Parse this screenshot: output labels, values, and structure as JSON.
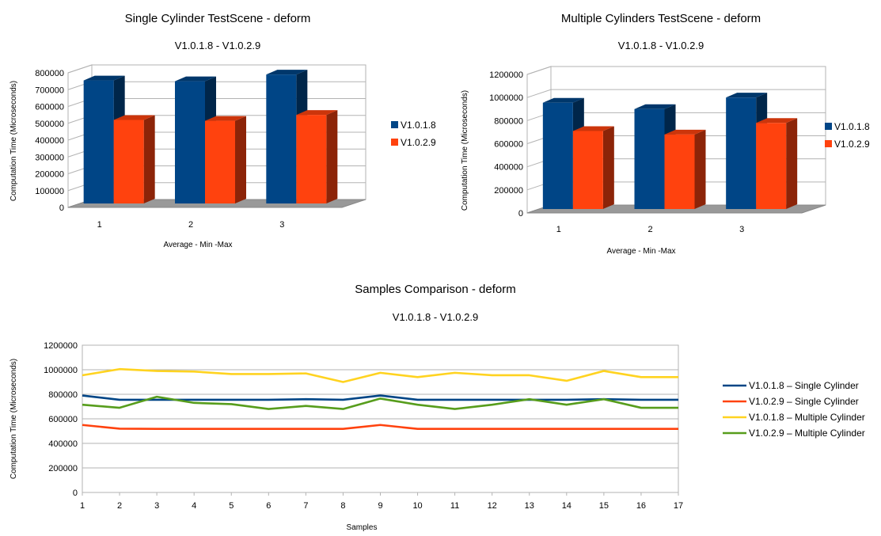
{
  "charts": [
    {
      "id": "single",
      "title": "Single Cylinder TestScene - deform",
      "subtitle": "V1.0.1.8 - V1.0.2.9",
      "xlabel": "Average - Min -Max",
      "ylabel": "Computation Time (Microseconds)",
      "y_ticks": [
        "0",
        "100000",
        "200000",
        "300000",
        "400000",
        "500000",
        "600000",
        "700000",
        "800000"
      ],
      "categories": [
        "1",
        "2",
        "3"
      ],
      "legend": [
        "V1.0.1.8",
        "V1.0.2.9"
      ]
    },
    {
      "id": "multiple",
      "title": "Multiple Cylinders TestScene - deform",
      "subtitle": "V1.0.1.8 - V1.0.2.9",
      "xlabel": "Average - Min -Max",
      "ylabel": "Computation Time (Microseconds)",
      "y_ticks": [
        "0",
        "200000",
        "400000",
        "600000",
        "800000",
        "1000000",
        "1200000"
      ],
      "categories": [
        "1",
        "2",
        "3"
      ],
      "legend": [
        "V1.0.1.8",
        "V1.0.2.9"
      ]
    },
    {
      "id": "samples",
      "title": "Samples Comparison - deform",
      "subtitle": "V1.0.1.8 - V1.0.2.9",
      "xlabel": "Samples",
      "ylabel": "Computation Time (Microseconds)",
      "y_ticks": [
        "0",
        "200000",
        "400000",
        "600000",
        "800000",
        "1000000",
        "1200000"
      ],
      "x_ticks": [
        "1",
        "2",
        "3",
        "4",
        "5",
        "6",
        "7",
        "8",
        "9",
        "10",
        "11",
        "12",
        "13",
        "14",
        "15",
        "16",
        "17"
      ],
      "legend": [
        "V1.0.1.8 – Single Cylinder",
        "V1.0.2.9 – Single Cylinder",
        "V1.0.1.8 – Multiple Cylinder",
        "V1.0.2.9 – Multiple Cylinder"
      ]
    }
  ],
  "colors": {
    "blue": "#004586",
    "orange": "#ff420e",
    "yellow": "#ffd320",
    "green": "#579d1c"
  },
  "chart_data": [
    {
      "type": "bar",
      "title": "Single Cylinder TestScene - deform",
      "subtitle": "V1.0.1.8 - V1.0.2.9",
      "xlabel": "Average - Min -Max",
      "ylabel": "Computation Time (Microseconds)",
      "categories": [
        "1",
        "2",
        "3"
      ],
      "ylim": [
        0,
        800000
      ],
      "grid": true,
      "legend_position": "right",
      "series": [
        {
          "name": "V1.0.1.8",
          "color": "#004586",
          "values": [
            755000,
            750000,
            790000
          ]
        },
        {
          "name": "V1.0.2.9",
          "color": "#ff420e",
          "values": [
            520000,
            515000,
            550000
          ]
        }
      ]
    },
    {
      "type": "bar",
      "title": "Multiple Cylinders TestScene - deform",
      "subtitle": "V1.0.1.8 - V1.0.2.9",
      "xlabel": "Average - Min -Max",
      "ylabel": "Computation Time (Microseconds)",
      "categories": [
        "1",
        "2",
        "3"
      ],
      "ylim": [
        0,
        1200000
      ],
      "grid": true,
      "legend_position": "right",
      "series": [
        {
          "name": "V1.0.1.8",
          "color": "#004586",
          "values": [
            955000,
            900000,
            1000000
          ]
        },
        {
          "name": "V1.0.2.9",
          "color": "#ff420e",
          "values": [
            710000,
            680000,
            780000
          ]
        }
      ]
    },
    {
      "type": "line",
      "title": "Samples Comparison - deform",
      "subtitle": "V1.0.1.8 - V1.0.2.9",
      "xlabel": "Samples",
      "ylabel": "Computation Time (Microseconds)",
      "x": [
        1,
        2,
        3,
        4,
        5,
        6,
        7,
        8,
        9,
        10,
        11,
        12,
        13,
        14,
        15,
        16,
        17
      ],
      "ylim": [
        0,
        1200000
      ],
      "xlim": [
        1,
        17
      ],
      "grid": true,
      "legend_position": "right",
      "series": [
        {
          "name": "V1.0.1.8 – Single Cylinder",
          "color": "#004586",
          "values": [
            790000,
            755000,
            755000,
            755000,
            755000,
            755000,
            760000,
            755000,
            790000,
            755000,
            755000,
            755000,
            755000,
            755000,
            760000,
            755000,
            755000
          ]
        },
        {
          "name": "V1.0.2.9 – Single Cylinder",
          "color": "#ff420e",
          "values": [
            550000,
            520000,
            518000,
            518000,
            518000,
            518000,
            518000,
            518000,
            550000,
            518000,
            518000,
            518000,
            518000,
            518000,
            518000,
            518000,
            518000
          ]
        },
        {
          "name": "V1.0.1.8 – Multiple Cylinder",
          "color": "#ffd320",
          "values": [
            955000,
            1005000,
            990000,
            985000,
            965000,
            965000,
            970000,
            900000,
            975000,
            940000,
            975000,
            955000,
            955000,
            910000,
            990000,
            940000,
            940000
          ]
        },
        {
          "name": "V1.0.2.9 – Multiple Cylinder",
          "color": "#579d1c",
          "values": [
            715000,
            690000,
            780000,
            730000,
            720000,
            680000,
            705000,
            680000,
            765000,
            715000,
            680000,
            715000,
            760000,
            715000,
            760000,
            690000,
            690000
          ]
        }
      ]
    }
  ]
}
